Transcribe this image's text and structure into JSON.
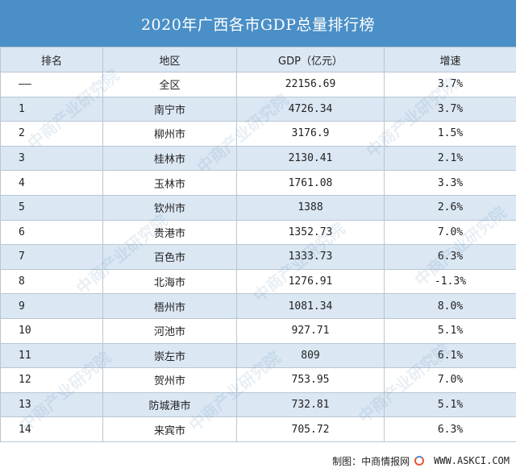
{
  "title": "2020年广西各市GDP总量排行榜",
  "columns": [
    "排名",
    "地区",
    "GDP（亿元）",
    "增速"
  ],
  "rows": [
    {
      "rank": "——",
      "region": "全区",
      "gdp": "22156.69",
      "growth": "3.7%"
    },
    {
      "rank": "1",
      "region": "南宁市",
      "gdp": "4726.34",
      "growth": "3.7%"
    },
    {
      "rank": "2",
      "region": "柳州市",
      "gdp": "3176.9",
      "growth": "1.5%"
    },
    {
      "rank": "3",
      "region": "桂林市",
      "gdp": "2130.41",
      "growth": "2.1%"
    },
    {
      "rank": "4",
      "region": "玉林市",
      "gdp": "1761.08",
      "growth": "3.3%"
    },
    {
      "rank": "5",
      "region": "钦州市",
      "gdp": "1388",
      "growth": "2.6%"
    },
    {
      "rank": "6",
      "region": "贵港市",
      "gdp": "1352.73",
      "growth": "7.0%"
    },
    {
      "rank": "7",
      "region": "百色市",
      "gdp": "1333.73",
      "growth": "6.3%"
    },
    {
      "rank": "8",
      "region": "北海市",
      "gdp": "1276.91",
      "growth": "-1.3%"
    },
    {
      "rank": "9",
      "region": "梧州市",
      "gdp": "1081.34",
      "growth": "8.0%"
    },
    {
      "rank": "10",
      "region": "河池市",
      "gdp": "927.71",
      "growth": "5.1%"
    },
    {
      "rank": "11",
      "region": "崇左市",
      "gdp": "809",
      "growth": "6.1%"
    },
    {
      "rank": "12",
      "region": "贺州市",
      "gdp": "753.95",
      "growth": "7.0%"
    },
    {
      "rank": "13",
      "region": "防城港市",
      "gdp": "732.81",
      "growth": "5.1%"
    },
    {
      "rank": "14",
      "region": "来宾市",
      "gdp": "705.72",
      "growth": "6.3%"
    }
  ],
  "footer": {
    "label": "制图：中商情报网",
    "url": "WWW.ASKCI.COM"
  },
  "watermark_text": "中商产业研究院",
  "colors": {
    "title_bg": "#4a8fc7",
    "stripe": "#dbe7f3",
    "border": "#b9c6d3"
  }
}
